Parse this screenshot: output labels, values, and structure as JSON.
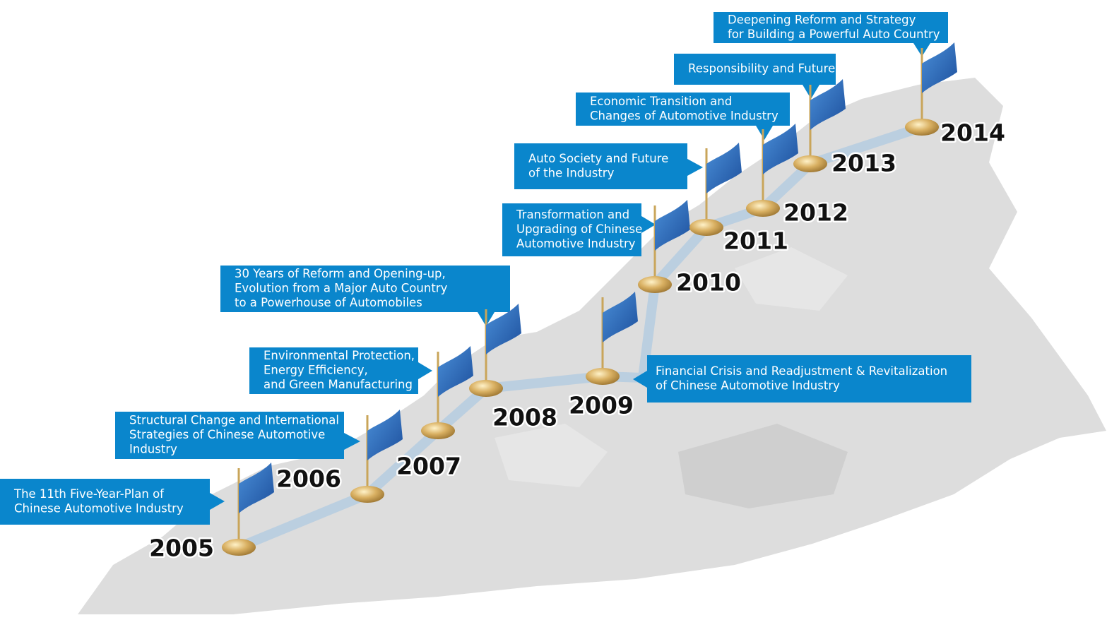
{
  "milestones": [
    {
      "year": "2005",
      "lines": [
        "The 11th Five-Year-Plan of",
        "Chinese Automotive Industry"
      ]
    },
    {
      "year": "2006",
      "lines": [
        "Structural Change and International",
        "Strategies of Chinese Automotive",
        "Industry"
      ]
    },
    {
      "year": "2007",
      "lines": [
        "Environmental Protection,",
        "Energy Efficiency,",
        "and Green Manufacturing"
      ]
    },
    {
      "year": "2008",
      "lines": [
        "30 Years of Reform and Opening-up,",
        "Evolution from a Major Auto Country",
        "to a Powerhouse of Automobiles"
      ]
    },
    {
      "year": "2009",
      "lines": [
        "Financial Crisis and Readjustment & Revitalization",
        "of Chinese Automotive Industry"
      ]
    },
    {
      "year": "2010",
      "lines": [
        "Transformation and",
        "Upgrading of Chinese",
        "Automotive Industry"
      ]
    },
    {
      "year": "2011",
      "lines": [
        "Auto Society and Future",
        "of the Industry"
      ]
    },
    {
      "year": "2012",
      "lines": [
        "Economic Transition and",
        "Changes of Automotive Industry"
      ]
    },
    {
      "year": "2013",
      "lines": [
        "Responsibility and Future"
      ]
    },
    {
      "year": "2014",
      "lines": [
        "Deepening Reform and Strategy",
        "for Building a Powerful Auto Country"
      ]
    }
  ]
}
